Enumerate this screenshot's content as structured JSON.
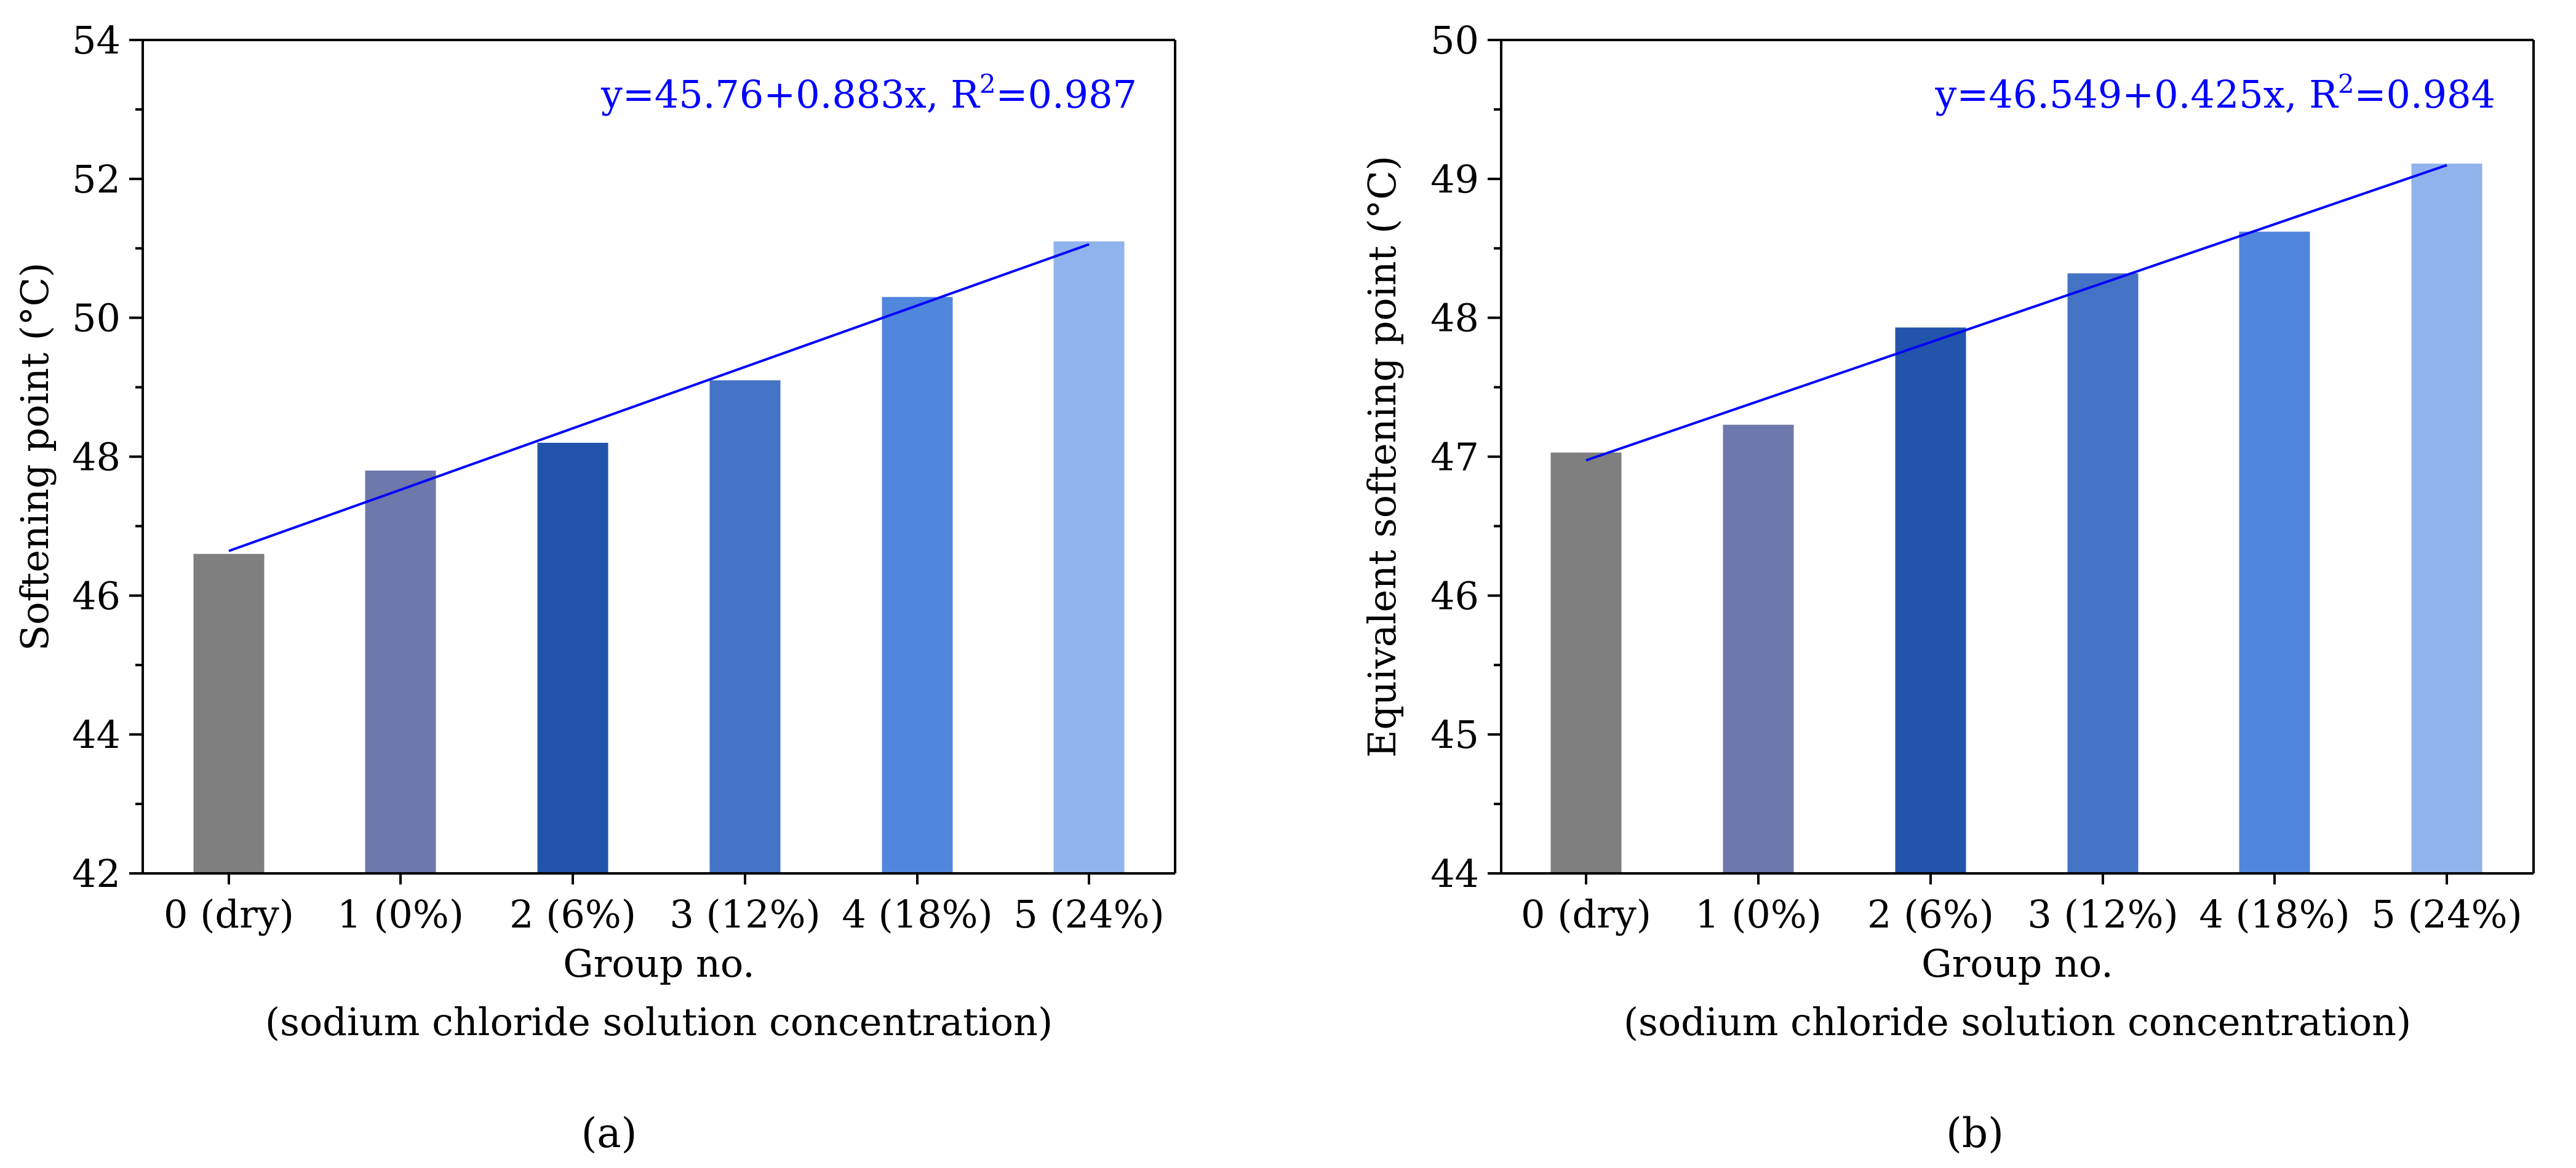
{
  "colors": {
    "bar_colors": [
      "#7f7f7f",
      "#6e78aa",
      "#2254ab",
      "#4473c5",
      "#5186dd",
      "#8fb3ec"
    ],
    "fit_line": "#0000ff",
    "axis": "#000000"
  },
  "chart_data": [
    {
      "type": "bar",
      "panel": "(a)",
      "categories": [
        "0 (dry)",
        "1 (0%)",
        "2 (6%)",
        "3 (12%)",
        "4 (18%)",
        "5 (24%)"
      ],
      "values": [
        46.6,
        47.8,
        48.2,
        49.1,
        50.3,
        51.1
      ],
      "ylabel": "Softening point (°C)",
      "xlabel": "Group no.",
      "xlabel2": "(sodium chloride solution concentration)",
      "ylim": [
        42,
        54
      ],
      "yticks": [
        42,
        44,
        46,
        48,
        50,
        52,
        54
      ],
      "ytick_labels": [
        "42",
        "44",
        "46",
        "48",
        "50",
        "52",
        "54"
      ],
      "minor_step": 1,
      "fit": {
        "intercept": 45.76,
        "slope": 0.883
      },
      "annotation": {
        "prefix": "y=45.76+0.883x, R",
        "sup": "2",
        "suffix": "=0.987"
      }
    },
    {
      "type": "bar",
      "panel": "(b)",
      "categories": [
        "0 (dry)",
        "1 (0%)",
        "2 (6%)",
        "3 (12%)",
        "4 (18%)",
        "5 (24%)"
      ],
      "values": [
        47.03,
        47.23,
        47.93,
        48.32,
        48.62,
        49.11
      ],
      "ylabel": "Equivalent softening point (°C)",
      "xlabel": "Group no.",
      "xlabel2": "(sodium chloride solution concentration)",
      "ylim": [
        44,
        50
      ],
      "yticks": [
        44,
        45,
        46,
        47,
        48,
        49,
        50
      ],
      "ytick_labels": [
        "44",
        "45",
        "46",
        "47",
        "48",
        "49",
        "50"
      ],
      "minor_step": 0.5,
      "fit": {
        "intercept": 46.549,
        "slope": 0.425
      },
      "annotation": {
        "prefix": "y=46.549+0.425x, R",
        "sup": "2",
        "suffix": "=0.984"
      }
    }
  ]
}
